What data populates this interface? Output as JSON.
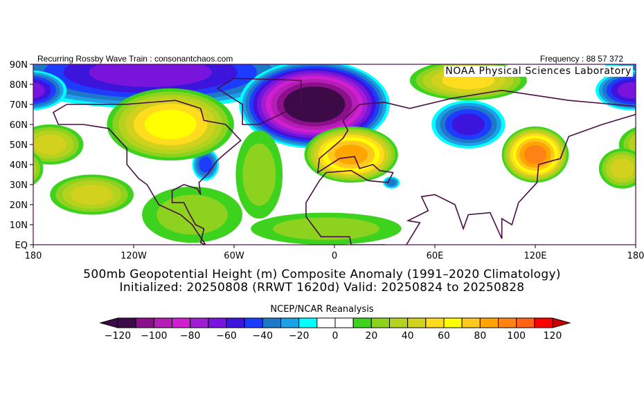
{
  "header": {
    "left_text": "Recurring Rossby Wave Train : consonantchaos.com",
    "right_text": "Frequency : 88 57 372",
    "lab_label": "NOAA Physical Sciences Laboratory"
  },
  "titles": {
    "line1": "500mb Geopotential Height (m) Composite Anomaly (1991–2020 Climatology)",
    "line2": "Initialized: 20250808 (RRWT 1620d) Valid: 20250824 to 20250828"
  },
  "colorbar": {
    "label": "NCEP/NCAR Reanalysis",
    "tick_labels": [
      "−120",
      "−100",
      "−80",
      "−60",
      "−40",
      "−20",
      "0",
      "20",
      "40",
      "60",
      "80",
      "100",
      "120"
    ],
    "levels": [
      -120,
      -110,
      -100,
      -90,
      -80,
      -70,
      -60,
      -50,
      -40,
      -30,
      -20,
      -10,
      0,
      10,
      20,
      30,
      40,
      50,
      60,
      70,
      80,
      90,
      100,
      110,
      120
    ],
    "colors": [
      "#3c0a46",
      "#8c0f8c",
      "#b41eb4",
      "#d21ed2",
      "#a01ed2",
      "#7814dc",
      "#3c14dc",
      "#1e3cff",
      "#1e78c8",
      "#1ea0e6",
      "#00ffff",
      "#ffffff",
      "#ffffff",
      "#3cd21e",
      "#8cd21e",
      "#b4d21e",
      "#d2d21e",
      "#ffdc1e",
      "#ffff00",
      "#ffc81e",
      "#ffa500",
      "#ff8214",
      "#ff6414",
      "#ff0000"
    ],
    "under_color": "#3c0a46",
    "over_color": "#c80000"
  },
  "map": {
    "lat_labels": [
      "90N",
      "80N",
      "70N",
      "60N",
      "50N",
      "40N",
      "30N",
      "20N",
      "10N",
      "EQ"
    ],
    "lon_labels": [
      "180",
      "120W",
      "60W",
      "0",
      "60E",
      "120E",
      "180"
    ],
    "coastline_color": "#4a0a46",
    "anomaly_features": [
      {
        "region": "Arctic Pacific/Canada band",
        "lon": -110,
        "lat": 86,
        "rlon": 90,
        "rlat": 18,
        "peak": -60
      },
      {
        "region": "Greenland/North Atlantic",
        "lon": -12,
        "lat": 70,
        "rlon": 45,
        "rlat": 22,
        "peak": -120
      },
      {
        "region": "Far NE Pacific Arctic",
        "lon": 178,
        "lat": 77,
        "rlon": 22,
        "rlat": 10,
        "peak": -60
      },
      {
        "region": "Central Siberia",
        "lon": 80,
        "lat": 60,
        "rlon": 22,
        "rlat": 12,
        "peak": -50
      },
      {
        "region": "Eastern US",
        "lon": -77,
        "lat": 40,
        "rlon": 8,
        "rlat": 8,
        "peak": -40
      },
      {
        "region": "Eastern Mediterranean",
        "lon": 34,
        "lat": 31,
        "rlon": 5,
        "rlat": 3,
        "peak": -30
      },
      {
        "region": "Canada",
        "lon": -98,
        "lat": 60,
        "rlon": 38,
        "rlat": 18,
        "peak": 60
      },
      {
        "region": "Europe",
        "lon": 10,
        "lat": 45,
        "rlon": 28,
        "rlat": 14,
        "peak": 80
      },
      {
        "region": "East Asia",
        "lon": 120,
        "lat": 45,
        "rlon": 20,
        "rlat": 14,
        "peak": 90
      },
      {
        "region": "Arctic Russia",
        "lon": 80,
        "lat": 82,
        "rlon": 35,
        "rlat": 10,
        "peak": 50
      },
      {
        "region": "North Pacific east",
        "lon": -170,
        "lat": 50,
        "rlon": 20,
        "rlat": 10,
        "peak": 40
      },
      {
        "region": "North Pacific west",
        "lon": 172,
        "lat": 38,
        "rlon": 14,
        "rlat": 10,
        "peak": 40
      },
      {
        "region": "Subtropical Pacific",
        "lon": -145,
        "lat": 25,
        "rlon": 25,
        "rlat": 10,
        "peak": 40
      },
      {
        "region": "Central America/Caribbean",
        "lon": -85,
        "lat": 15,
        "rlon": 30,
        "rlat": 14,
        "peak": 20
      },
      {
        "region": "Tropical Atlantic/Africa",
        "lon": -5,
        "lat": 8,
        "rlon": 45,
        "rlat": 8,
        "peak": 20
      },
      {
        "region": "West Atlantic",
        "lon": -45,
        "lat": 35,
        "rlon": 14,
        "rlat": 22,
        "peak": 20
      }
    ]
  }
}
